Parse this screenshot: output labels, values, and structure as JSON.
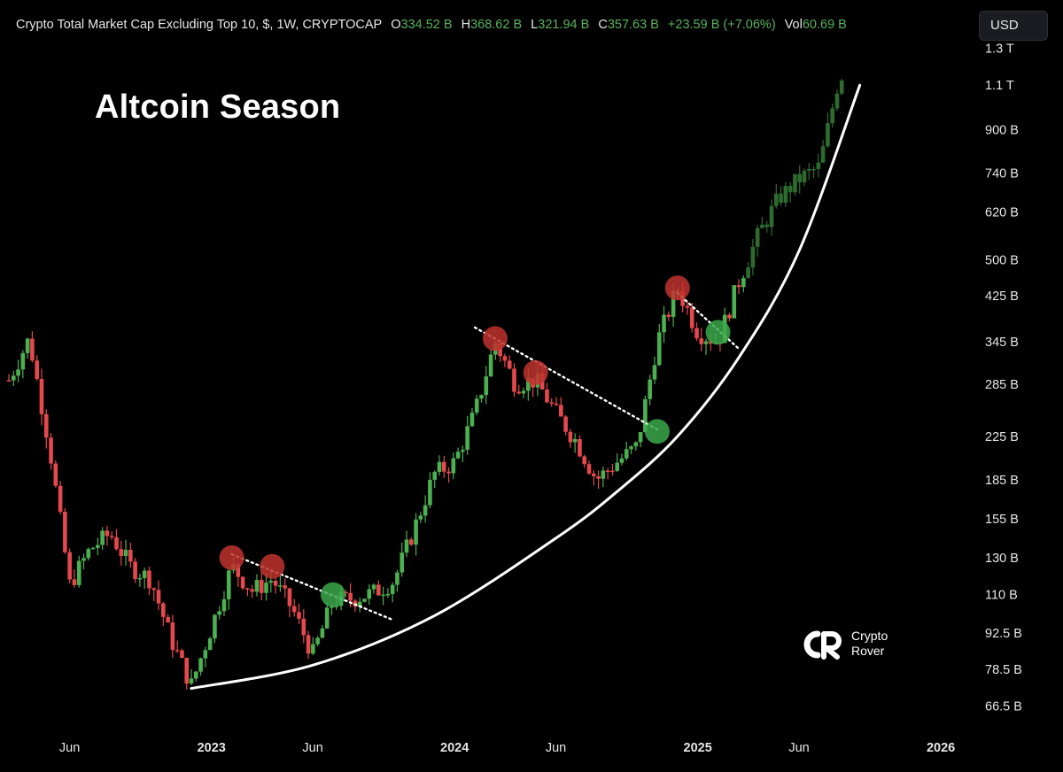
{
  "header": {
    "symbol": "Crypto Total Market Cap Excluding Top 10, $, 1W, CRYPTOCAP",
    "open_label": "O",
    "open_value": "334.52 B",
    "high_label": "H",
    "high_value": "368.62 B",
    "low_label": "L",
    "low_value": "321.94 B",
    "close_label": "C",
    "close_value": "357.63 B",
    "change": "+23.59 B (+7.06%)",
    "vol_label": "Vol",
    "vol_value": "60.69 B"
  },
  "currency_button": "USD",
  "logo": {
    "line1": "Crypto",
    "line2": "Rover"
  },
  "colors": {
    "background": "#000000",
    "up": "#4caf50",
    "down": "#e5484d",
    "up_dim": "#2e6b2e",
    "marker_red": "#c0322e",
    "marker_green": "#3aa84a",
    "curve": "#ffffff"
  },
  "chart_data": {
    "type": "candlestick",
    "title": "Altcoin Season",
    "y_scale": "log",
    "y_ticks": [
      "1.3 T",
      "1.1 T",
      "900 B",
      "740 B",
      "620 B",
      "500 B",
      "425 B",
      "345 B",
      "285 B",
      "225 B",
      "185 B",
      "155 B",
      "130 B",
      "110 B",
      "92.5 B",
      "78.5 B",
      "66.5 B"
    ],
    "y_tick_values": [
      1300,
      1100,
      900,
      740,
      620,
      500,
      425,
      345,
      285,
      225,
      185,
      155,
      130,
      110,
      92.5,
      78.5,
      66.5
    ],
    "y_unit": "B",
    "ylim": [
      62,
      1350
    ],
    "x_ticks": [
      {
        "label": "Jun",
        "date": "2022-06",
        "year": false
      },
      {
        "label": "2023",
        "date": "2023-01",
        "year": true
      },
      {
        "label": "Jun",
        "date": "2023-06",
        "year": false
      },
      {
        "label": "2024",
        "date": "2024-01",
        "year": true
      },
      {
        "label": "Jun",
        "date": "2024-06",
        "year": false
      },
      {
        "label": "2025",
        "date": "2025-01",
        "year": true
      },
      {
        "label": "Jun",
        "date": "2025-06",
        "year": false
      },
      {
        "label": "2026",
        "date": "2026-01",
        "year": true
      }
    ],
    "xlim": [
      "2022-03",
      "2026-02"
    ],
    "series_close": [
      {
        "date": "2022-03",
        "value": 290
      },
      {
        "date": "2022-04",
        "value": 350
      },
      {
        "date": "2022-05",
        "value": 215
      },
      {
        "date": "2022-06",
        "value": 115
      },
      {
        "date": "2022-07",
        "value": 135
      },
      {
        "date": "2022-08",
        "value": 145
      },
      {
        "date": "2022-09",
        "value": 125
      },
      {
        "date": "2022-10",
        "value": 118
      },
      {
        "date": "2022-11",
        "value": 90
      },
      {
        "date": "2022-12",
        "value": 73
      },
      {
        "date": "2023-01",
        "value": 95
      },
      {
        "date": "2023-02",
        "value": 125
      },
      {
        "date": "2023-03",
        "value": 112
      },
      {
        "date": "2023-04",
        "value": 118
      },
      {
        "date": "2023-05",
        "value": 103
      },
      {
        "date": "2023-06",
        "value": 84
      },
      {
        "date": "2023-07",
        "value": 107
      },
      {
        "date": "2023-08",
        "value": 108
      },
      {
        "date": "2023-09",
        "value": 111
      },
      {
        "date": "2023-10",
        "value": 117
      },
      {
        "date": "2023-11",
        "value": 148
      },
      {
        "date": "2023-12",
        "value": 190
      },
      {
        "date": "2024-01",
        "value": 200
      },
      {
        "date": "2024-02",
        "value": 250
      },
      {
        "date": "2024-03",
        "value": 345
      },
      {
        "date": "2024-04",
        "value": 285
      },
      {
        "date": "2024-05",
        "value": 290
      },
      {
        "date": "2024-06",
        "value": 250
      },
      {
        "date": "2024-07",
        "value": 220
      },
      {
        "date": "2024-08",
        "value": 185
      },
      {
        "date": "2024-09",
        "value": 200
      },
      {
        "date": "2024-10",
        "value": 215
      },
      {
        "date": "2024-11",
        "value": 345
      },
      {
        "date": "2024-12",
        "value": 440
      },
      {
        "date": "2025-01",
        "value": 360
      },
      {
        "date": "2025-02",
        "value": 345
      },
      {
        "date": "2025-03",
        "value": 450
      },
      {
        "date": "2025-04",
        "value": 560
      },
      {
        "date": "2025-05",
        "value": 660
      },
      {
        "date": "2025-06",
        "value": 720
      },
      {
        "date": "2025-07",
        "value": 760
      },
      {
        "date": "2025-08",
        "value": 1150
      }
    ],
    "signal_markers": [
      {
        "type": "sell",
        "date": "2023-02",
        "value": 130
      },
      {
        "type": "sell",
        "date": "2023-04",
        "value": 125
      },
      {
        "type": "buy",
        "date": "2023-07",
        "value": 110
      },
      {
        "type": "sell",
        "date": "2024-03",
        "value": 350
      },
      {
        "type": "sell",
        "date": "2024-05",
        "value": 300
      },
      {
        "type": "buy",
        "date": "2024-11",
        "value": 230
      },
      {
        "type": "sell",
        "date": "2024-12",
        "value": 440
      },
      {
        "type": "buy",
        "date": "2025-02",
        "value": 360
      }
    ],
    "trendlines": [
      {
        "from": {
          "date": "2023-02",
          "value": 132
        },
        "to": {
          "date": "2023-10",
          "value": 98
        }
      },
      {
        "from": {
          "date": "2024-02",
          "value": 368
        },
        "to": {
          "date": "2024-11",
          "value": 232
        }
      },
      {
        "from": {
          "date": "2024-12",
          "value": 430
        },
        "to": {
          "date": "2025-03",
          "value": 335
        }
      }
    ],
    "support_curve": [
      {
        "date": "2022-12",
        "value": 72
      },
      {
        "date": "2023-06",
        "value": 80
      },
      {
        "date": "2023-12",
        "value": 100
      },
      {
        "date": "2024-06",
        "value": 142
      },
      {
        "date": "2024-09",
        "value": 175
      },
      {
        "date": "2024-12",
        "value": 225
      },
      {
        "date": "2025-03",
        "value": 320
      },
      {
        "date": "2025-06",
        "value": 520
      },
      {
        "date": "2025-09",
        "value": 1100
      }
    ]
  }
}
